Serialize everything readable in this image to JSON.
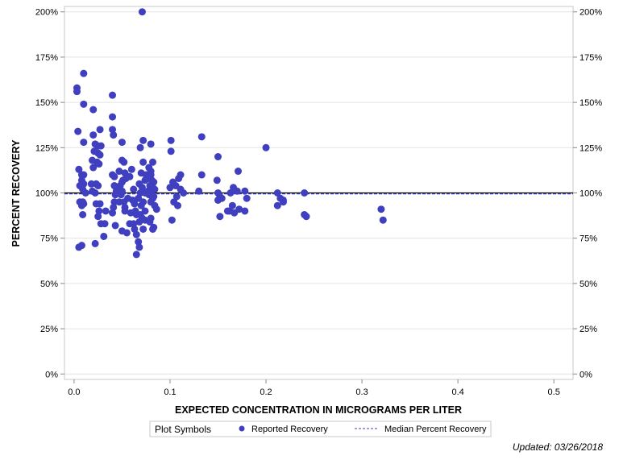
{
  "chart_data": {
    "type": "scatter",
    "xlabel": "EXPECTED CONCENTRATION IN MICROGRAMS PER LITER",
    "ylabel": "PERCENT RECOVERY",
    "xlim": [
      -0.01,
      0.52
    ],
    "ylim": [
      -3,
      203
    ],
    "x_ticks": [
      0,
      0.1,
      0.2,
      0.3,
      0.4,
      0.5
    ],
    "x_tick_labels": [
      "0.0",
      "0.1",
      "0.2",
      "0.3",
      "0.4",
      "0.5"
    ],
    "y_ticks": [
      0,
      25,
      50,
      75,
      100,
      125,
      150,
      175,
      200
    ],
    "y_tick_labels": [
      "0%",
      "25%",
      "50%",
      "75%",
      "100%",
      "125%",
      "150%",
      "175%",
      "200%"
    ],
    "grid": true,
    "reference_line": {
      "name": "100% recovery",
      "y": 100
    },
    "median_line": {
      "name": "Median Percent Recovery",
      "y": 99.5
    },
    "legend": {
      "title": "Plot Symbols",
      "position": "bottom-center",
      "entries": [
        "Reported Recovery",
        "Median Percent Recovery"
      ]
    },
    "series": [
      {
        "name": "Reported Recovery",
        "color": "#3f3fbf",
        "points": [
          [
            0.003,
            158
          ],
          [
            0.003,
            156
          ],
          [
            0.01,
            166
          ],
          [
            0.01,
            149
          ],
          [
            0.004,
            134
          ],
          [
            0.01,
            128
          ],
          [
            0.005,
            113
          ],
          [
            0.008,
            110
          ],
          [
            0.01,
            110
          ],
          [
            0.008,
            107
          ],
          [
            0.01,
            105
          ],
          [
            0.006,
            104
          ],
          [
            0.009,
            102
          ],
          [
            0.012,
            100
          ],
          [
            0.006,
            95
          ],
          [
            0.009,
            95
          ],
          [
            0.01,
            94
          ],
          [
            0.008,
            93
          ],
          [
            0.009,
            88
          ],
          [
            0.005,
            70
          ],
          [
            0.008,
            71
          ],
          [
            0.02,
            146
          ],
          [
            0.02,
            132
          ],
          [
            0.027,
            135
          ],
          [
            0.022,
            127
          ],
          [
            0.025,
            126
          ],
          [
            0.028,
            126
          ],
          [
            0.021,
            123
          ],
          [
            0.025,
            122
          ],
          [
            0.027,
            121
          ],
          [
            0.019,
            118
          ],
          [
            0.024,
            117
          ],
          [
            0.02,
            114
          ],
          [
            0.026,
            116
          ],
          [
            0.018,
            105
          ],
          [
            0.023,
            105
          ],
          [
            0.025,
            104
          ],
          [
            0.019,
            101
          ],
          [
            0.022,
            100
          ],
          [
            0.023,
            94
          ],
          [
            0.027,
            94
          ],
          [
            0.026,
            90
          ],
          [
            0.033,
            90
          ],
          [
            0.025,
            87
          ],
          [
            0.028,
            83
          ],
          [
            0.032,
            83
          ],
          [
            0.031,
            76
          ],
          [
            0.022,
            72
          ],
          [
            0.04,
            154
          ],
          [
            0.04,
            142
          ],
          [
            0.04,
            135
          ],
          [
            0.041,
            132
          ],
          [
            0.05,
            128
          ],
          [
            0.05,
            118
          ],
          [
            0.052,
            117
          ],
          [
            0.047,
            112
          ],
          [
            0.053,
            111
          ],
          [
            0.04,
            110
          ],
          [
            0.042,
            109
          ],
          [
            0.05,
            106
          ],
          [
            0.051,
            107
          ],
          [
            0.054,
            108
          ],
          [
            0.058,
            109
          ],
          [
            0.042,
            104
          ],
          [
            0.048,
            104
          ],
          [
            0.044,
            101
          ],
          [
            0.05,
            101
          ],
          [
            0.043,
            99
          ],
          [
            0.049,
            99
          ],
          [
            0.056,
            97
          ],
          [
            0.042,
            95
          ],
          [
            0.047,
            95
          ],
          [
            0.052,
            95
          ],
          [
            0.053,
            92
          ],
          [
            0.041,
            92
          ],
          [
            0.053,
            90
          ],
          [
            0.059,
            89
          ],
          [
            0.04,
            89
          ],
          [
            0.058,
            83
          ],
          [
            0.043,
            82
          ],
          [
            0.05,
            79
          ],
          [
            0.055,
            78
          ],
          [
            0.06,
            113
          ],
          [
            0.062,
            102
          ],
          [
            0.061,
            96
          ],
          [
            0.063,
            94
          ],
          [
            0.064,
            90
          ],
          [
            0.065,
            88
          ],
          [
            0.062,
            83
          ],
          [
            0.063,
            80
          ],
          [
            0.065,
            77
          ],
          [
            0.067,
            73
          ],
          [
            0.068,
            70
          ],
          [
            0.065,
            66
          ],
          [
            0.071,
            200
          ],
          [
            0.072,
            129
          ],
          [
            0.069,
            125
          ],
          [
            0.072,
            117
          ],
          [
            0.07,
            111
          ],
          [
            0.075,
            110
          ],
          [
            0.074,
            107
          ],
          [
            0.068,
            105
          ],
          [
            0.071,
            103
          ],
          [
            0.074,
            100
          ],
          [
            0.069,
            100
          ],
          [
            0.067,
            97
          ],
          [
            0.072,
            95
          ],
          [
            0.07,
            93
          ],
          [
            0.074,
            90
          ],
          [
            0.069,
            88
          ],
          [
            0.071,
            86
          ],
          [
            0.074,
            85
          ],
          [
            0.068,
            84
          ],
          [
            0.072,
            80
          ],
          [
            0.08,
            127
          ],
          [
            0.082,
            117
          ],
          [
            0.078,
            114
          ],
          [
            0.08,
            112
          ],
          [
            0.08,
            110
          ],
          [
            0.078,
            108
          ],
          [
            0.081,
            107
          ],
          [
            0.083,
            106
          ],
          [
            0.079,
            104
          ],
          [
            0.082,
            103
          ],
          [
            0.084,
            102
          ],
          [
            0.077,
            101
          ],
          [
            0.08,
            100
          ],
          [
            0.078,
            99
          ],
          [
            0.083,
            98
          ],
          [
            0.082,
            97
          ],
          [
            0.08,
            95
          ],
          [
            0.084,
            93
          ],
          [
            0.086,
            91
          ],
          [
            0.08,
            86
          ],
          [
            0.079,
            84
          ],
          [
            0.083,
            81
          ],
          [
            0.082,
            80
          ],
          [
            0.101,
            129
          ],
          [
            0.101,
            123
          ],
          [
            0.111,
            110
          ],
          [
            0.109,
            108
          ],
          [
            0.103,
            106
          ],
          [
            0.106,
            104
          ],
          [
            0.1,
            103
          ],
          [
            0.111,
            102
          ],
          [
            0.114,
            100
          ],
          [
            0.107,
            98
          ],
          [
            0.104,
            95
          ],
          [
            0.108,
            93
          ],
          [
            0.102,
            85
          ],
          [
            0.133,
            131
          ],
          [
            0.133,
            110
          ],
          [
            0.13,
            101
          ],
          [
            0.15,
            120
          ],
          [
            0.149,
            107
          ],
          [
            0.15,
            100
          ],
          [
            0.152,
            98
          ],
          [
            0.154,
            97
          ],
          [
            0.15,
            96
          ],
          [
            0.152,
            87
          ],
          [
            0.166,
            103
          ],
          [
            0.163,
            100
          ],
          [
            0.17,
            101
          ],
          [
            0.165,
            93
          ],
          [
            0.162,
            90
          ],
          [
            0.167,
            89
          ],
          [
            0.16,
            90
          ],
          [
            0.172,
            91
          ],
          [
            0.171,
            112
          ],
          [
            0.178,
            101
          ],
          [
            0.18,
            97
          ],
          [
            0.178,
            90
          ],
          [
            0.2,
            125
          ],
          [
            0.212,
            100
          ],
          [
            0.215,
            97
          ],
          [
            0.218,
            96
          ],
          [
            0.212,
            93
          ],
          [
            0.218,
            95
          ],
          [
            0.24,
            100
          ],
          [
            0.242,
            87
          ],
          [
            0.24,
            88
          ],
          [
            0.32,
            91
          ],
          [
            0.322,
            85
          ]
        ]
      }
    ],
    "footer_text": "Updated: 03/26/2018"
  }
}
